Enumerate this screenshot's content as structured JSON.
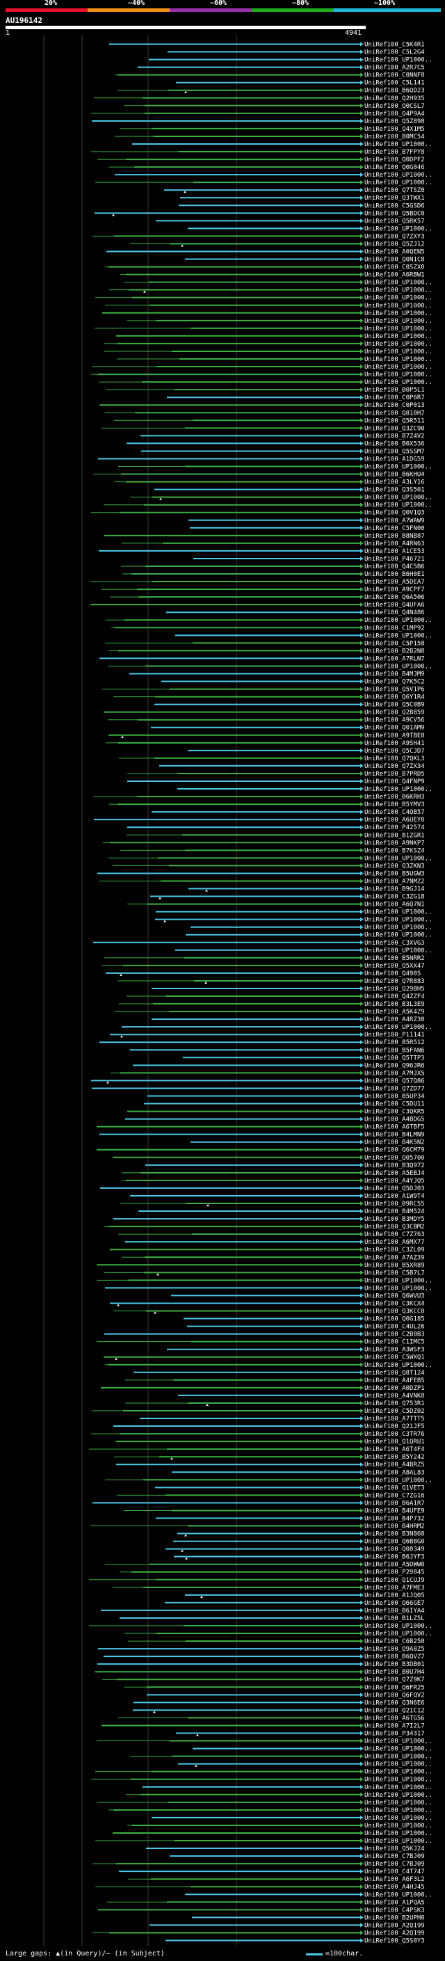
{
  "scale": {
    "marks": [
      {
        "label": "20%",
        "color": "#e8112d"
      },
      {
        "label": "~40%",
        "color": "#f39018"
      },
      {
        "label": "~60%",
        "color": "#9b2fae"
      },
      {
        "label": "~80%",
        "color": "#1fae1f"
      },
      {
        "label": "~100%",
        "color": "#1fb8d8"
      }
    ]
  },
  "query": {
    "id": "AU196142",
    "start": "1",
    "end": "4941"
  },
  "colors": {
    "high_identity": "#4cc9e8",
    "mid_identity": "#3cb043",
    "gap_marker": "#ffffff",
    "grid": "#3a3a3a"
  },
  "hits": [
    "UniRef100_C5K4R1",
    "UniRef100_C5L2G4",
    "UniRef100_UP1000..",
    "UniRef100_A2R7C5",
    "UniRef100_C0NNF8",
    "UniRef100_C5L141",
    "UniRef100_B6QD23",
    "UniRef100_Q2H935",
    "UniRef100_Q0CSL7",
    "UniRef100_Q4P9A4",
    "UniRef100_Q5Z898",
    "UniRef100_Q4X1M5",
    "UniRef100_B0MC54",
    "UniRef100_UP1000..",
    "UniRef100_B7FPY8",
    "UniRef100_Q0DPF2",
    "UniRef100_Q0G046",
    "UniRef100_UP1000..",
    "UniRef100_UP1000..",
    "UniRef100_Q7TSZ0",
    "UniRef100_Q3TWX1",
    "UniRef100_C5GSD6",
    "UniRef100_Q5BDC0",
    "UniRef100_Q5RK57",
    "UniRef100_UP1000..",
    "UniRef100_Q7ZXY3",
    "UniRef100_Q5ZJ12",
    "UniRef100_A0QEN5",
    "UniRef100_Q0N1C8",
    "UniRef100_C0SZX0",
    "UniRef100_A6RBW1",
    "UniRef100_UP1000..",
    "UniRef100_UP1000..",
    "UniRef100_UP1000..",
    "UniRef100_UP1000..",
    "UniRef100_UP1000..",
    "UniRef100_UP1000..",
    "UniRef100_UP1000..",
    "UniRef100_UP1000..",
    "UniRef100_UP1000..",
    "UniRef100_UP1000..",
    "UniRef100_UP1000..",
    "UniRef100_UP1000..",
    "UniRef100_UP1000..",
    "UniRef100_UP1000..",
    "UniRef100_B0P5L1",
    "UniRef100_C0P6R7",
    "UniRef100_C0P013",
    "UniRef100_Q810H7",
    "UniRef100_Q5R511",
    "UniRef100_Q3ZC90",
    "UniRef100_B7Z4V2",
    "UniRef100_B0X536",
    "UniRef100_Q5SSM7",
    "UniRef100_A1DG59",
    "UniRef100_UP1000..",
    "UniRef100_B6KHU4",
    "UniRef100_A3LY16",
    "UniRef100_Q3S501",
    "UniRef100_UP1000..",
    "UniRef100_UP1000..",
    "UniRef100_Q0V1Q3",
    "UniRef100_A7WAW9",
    "UniRef100_C5FN00",
    "UniRef100_B8NB87",
    "UniRef100_A4RN63",
    "UniRef100_A1CE53",
    "UniRef100_P46721",
    "UniRef100_Q4C5B6",
    "UniRef100_B6H0E1",
    "UniRef100_A5DEA7",
    "UniRef100_A9CPF7",
    "UniRef100_Q6A506",
    "UniRef100_Q4UFA6",
    "UniRef100_Q4N486",
    "UniRef100_UP1000..",
    "UniRef100_C1MP92",
    "UniRef100_UP1000..",
    "UniRef100_C5P158",
    "UniRef100_B2B2N8",
    "UniRef100_A7RLN7",
    "UniRef100_UP1000..",
    "UniRef100_B4MJM9",
    "UniRef100_Q7K5C2",
    "UniRef100_Q5V1P6",
    "UniRef100_Q6Y1R4",
    "UniRef100_Q5C0B9",
    "UniRef100_Q2B859",
    "UniRef100_A9CV56",
    "UniRef100_Q01AM9",
    "UniRef100_A9TBE8",
    "UniRef100_A9SH41",
    "UniRef100_Q5CJD7",
    "UniRef100_Q7QKL3",
    "UniRef100_Q7ZX34",
    "UniRef100_B7PRD5",
    "UniRef100_Q4FNP9",
    "UniRef100_UP1000..",
    "UniRef100_B6KRH3",
    "UniRef100_B5YMV3",
    "UniRef100_C4QB57",
    "UniRef100_A6UEY0",
    "UniRef100_P42574",
    "UniRef100_B1ZGR1",
    "UniRef100_A9NKP7",
    "UniRef100_B7KSZ4",
    "UniRef100_UP1000..",
    "UniRef100_Q3ZKN3",
    "UniRef100_B5UGW3",
    "UniRef100_A7NMZ2",
    "UniRef100_B9GJ14",
    "UniRef100_C3ZG18",
    "UniRef100_A6Q7N1",
    "UniRef100_UP1000..",
    "UniRef100_UP1000..",
    "UniRef100_UP1000..",
    "UniRef100_UP1000..",
    "UniRef100_C3XVG3",
    "UniRef100_UP1000..",
    "UniRef100_B5NRR2",
    "UniRef100_Q5XX47",
    "UniRef100_Q4905",
    "UniRef100_Q7R883",
    "UniRef100_Q29BH5",
    "UniRef100_Q4ZZF4",
    "UniRef100_B3L3E9",
    "UniRef100_A5K4Z9",
    "UniRef100_A4RZ30",
    "UniRef100_UP1000..",
    "UniRef100_P11141",
    "UniRef100_B5R512",
    "UniRef100_B5FAN6",
    "UniRef100_Q5TTP3",
    "UniRef100_Q96JR6",
    "UniRef100_A7MJX5",
    "UniRef100_Q57Q86",
    "UniRef100_Q7ZD77",
    "UniRef100_B5UP34",
    "UniRef100_C5DU11",
    "UniRef100_C3QKR5",
    "UniRef100_A4BDG5",
    "UniRef100_A6TBF5",
    "UniRef100_B4LMN9",
    "UniRef100_B4K5N2",
    "UniRef100_Q6CM79",
    "UniRef100_Q05700",
    "UniRef100_B3Q972",
    "UniRef100_A5EBJ4",
    "UniRef100_A4YJQ5",
    "UniRef100_Q5DJ03",
    "UniRef100_A1W9T4",
    "UniRef100_B9RC55",
    "UniRef100_B4M524",
    "UniRef100_B3MDY5",
    "UniRef100_Q3CBM2",
    "UniRef100_C7Z763",
    "UniRef100_A6MX77",
    "UniRef100_C3ZL09",
    "UniRef100_A7AZ39",
    "UniRef100_B5XR89",
    "UniRef100_C5B7L7",
    "UniRef100_UP1000..",
    "UniRef100_UP1000..",
    "UniRef100_Q6WVU3",
    "UniRef100_C3KCX4",
    "UniRef100_Q3KCC0",
    "UniRef100_Q0G185",
    "UniRef100_C4UL26",
    "UniRef100_C2B0B3",
    "UniRef100_C1IMC5",
    "UniRef100_A3WSF3",
    "UniRef100_C5WXQ1",
    "UniRef100_UP1000..",
    "UniRef100_Q8T124",
    "UniRef100_A4FEB5",
    "UniRef100_A0DZP1",
    "UniRef100_A4VNK8",
    "UniRef100_Q753R1",
    "UniRef100_C5DZ02",
    "UniRef100_A7TTT5",
    "UniRef100_Q21JF5",
    "UniRef100_C3TR76",
    "UniRef100_Q1QRU1",
    "UniRef100_A6T4F4",
    "UniRef100_B5Y242",
    "UniRef100_A4BRZ5",
    "UniRef100_A8AL83",
    "UniRef100_UP1000..",
    "UniRef100_Q1VET3",
    "UniRef100_C7ZG16",
    "UniRef100_B6A1R7",
    "UniRef100_B4UFE9",
    "UniRef100_B4P732",
    "UniRef100_B4HRM2",
    "UniRef100_B3N868",
    "UniRef100_Q6B8G0",
    "UniRef100_Q00349",
    "UniRef100_B6JYF3",
    "UniRef100_A5DWW0",
    "UniRef100_P29845",
    "UniRef100_Q1CUJ9",
    "UniRef100_A7FME3",
    "UniRef100_A1JQ05",
    "UniRef100_Q66GE7",
    "UniRef100_B6IYA4",
    "UniRef100_B1LZ5L",
    "UniRef100_UP1000..",
    "UniRef100_UP1000..",
    "UniRef100_C6B250",
    "UniRef100_Q9A0Z5",
    "UniRef100_B6QVZ7",
    "UniRef100_B3DB01",
    "UniRef100_B0U7H4",
    "UniRef100_Q7Z9K7",
    "UniRef100_Q6FR25",
    "UniRef100_Q6FQV2",
    "UniRef100_Q3N6E6",
    "UniRef100_Q21C12",
    "UniRef100_A6TG56",
    "UniRef100_A7I2L7",
    "UniRef100_P34317",
    "UniRef100_UP1000..",
    "UniRef100_UP1000..",
    "UniRef100_UP1000..",
    "UniRef100_UP1000..",
    "UniRef100_UP1000..",
    "UniRef100_UP1000..",
    "UniRef100_UP1000..",
    "UniRef100_UP1000..",
    "UniRef100_UP1000..",
    "UniRef100_UP1000..",
    "UniRef100_UP1000..",
    "UniRef100_UP1000..",
    "UniRef100_UP1000..",
    "UniRef100_UP1000..",
    "UniRef100_Q5KJ24",
    "UniRef100_C7BJ09",
    "UniRef100_C7BJ09",
    "UniRef100_C4T747",
    "UniRef100_A6F3L2",
    "UniRef100_A4HJ45",
    "UniRef100_UP1000..",
    "UniRef100_A1PQA5",
    "UniRef100_C4PSK3",
    "UniRef100_B2UPH0",
    "UniRef100_A2Q199",
    "UniRef100_A2Q199",
    "UniRef100_Q5S0Y3"
  ],
  "footer": {
    "gaps_label": "Large gaps: ▲(in Query)/– (in Subject)",
    "legend_label": "=100char."
  }
}
